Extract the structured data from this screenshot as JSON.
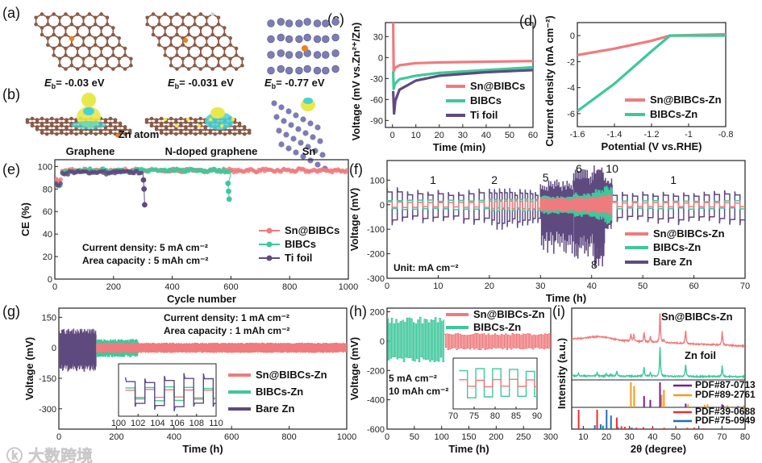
{
  "panel_labels": [
    "(a)",
    "(b)",
    "(c)",
    "(d)",
    "(e)",
    "(f)",
    "(g)",
    "(h)",
    "(i)"
  ],
  "structures": {
    "eb_symbol": "E",
    "eb_sub": "b",
    "a_energies": [
      "= -0.03 eV",
      "= -0.031 eV",
      "= -0.77 eV"
    ],
    "b_labels": [
      "Graphene",
      "N-doped graphene",
      "Sn"
    ],
    "zn_atom_label": "Zn atom"
  },
  "colors": {
    "sn_bibcs": "#ef7b7e",
    "bibcs": "#3ec89b",
    "bare": "#5f4a80",
    "carbon": "#8a5a48",
    "sn_atom": "#7d7cb4",
    "zn_atom": "#e9821e",
    "iso_yellow": "#e8e84a",
    "iso_cyan": "#46d3d6",
    "pdf_zn": "#7a1f8f",
    "pdf_sn": "#f39a1e",
    "pdf_red": "#e8302f",
    "pdf_blue": "#1f6fb8"
  },
  "watermark": "大数跨境",
  "chart_data": [
    {
      "id": "c",
      "type": "line",
      "xlabel": "Time (min)",
      "ylabel": "Voltage (mV vs.Zn²⁺/Zn)",
      "xlim": [
        -3,
        60
      ],
      "ylim": [
        -100,
        50
      ],
      "xticks": [
        0,
        10,
        20,
        30,
        40,
        50,
        60
      ],
      "yticks": [
        30,
        0,
        -30,
        -60,
        -90
      ],
      "legend": "bottom-right",
      "series": [
        {
          "name": "Sn@BIBCs",
          "color_key": "sn_bibcs",
          "points": [
            [
              0.3,
              50
            ],
            [
              0.5,
              -20
            ],
            [
              1,
              -15
            ],
            [
              3,
              -11
            ],
            [
              10,
              -8
            ],
            [
              20,
              -7
            ],
            [
              40,
              -6
            ],
            [
              60,
              -5
            ]
          ]
        },
        {
          "name": "BIBCs",
          "color_key": "bibcs",
          "points": [
            [
              0.3,
              -20
            ],
            [
              0.5,
              -45
            ],
            [
              1,
              -38
            ],
            [
              3,
              -31
            ],
            [
              10,
              -26
            ],
            [
              20,
              -22
            ],
            [
              40,
              -18
            ],
            [
              60,
              -14
            ]
          ]
        },
        {
          "name": "Ti foil",
          "color_key": "bare",
          "points": [
            [
              0.3,
              -48
            ],
            [
              0.7,
              -80
            ],
            [
              1.2,
              -62
            ],
            [
              3,
              -46
            ],
            [
              10,
              -33
            ],
            [
              20,
              -26
            ],
            [
              40,
              -21
            ],
            [
              60,
              -18
            ]
          ]
        }
      ]
    },
    {
      "id": "d",
      "type": "line",
      "xlabel": "Potential (V vs.RHE)",
      "ylabel": "Current density (mA cm⁻²)",
      "xlim": [
        -1.6,
        -0.8
      ],
      "ylim": [
        -7,
        1
      ],
      "xticks": [
        -1.6,
        -1.4,
        -1.2,
        -1.0,
        -0.8
      ],
      "yticks": [
        0,
        -2,
        -4,
        -6
      ],
      "legend": "bottom-right",
      "series": [
        {
          "name": "Sn@BIBCs-Zn",
          "color_key": "sn_bibcs",
          "points": [
            [
              -1.6,
              -1.5
            ],
            [
              -1.4,
              -1.0
            ],
            [
              -1.2,
              -0.4
            ],
            [
              -1.1,
              0
            ],
            [
              -0.8,
              0.1
            ]
          ]
        },
        {
          "name": "BIBCs-Zn",
          "color_key": "bibcs",
          "points": [
            [
              -1.6,
              -5.8
            ],
            [
              -1.4,
              -3.7
            ],
            [
              -1.2,
              -1.2
            ],
            [
              -1.1,
              0
            ],
            [
              -0.8,
              0
            ]
          ]
        }
      ]
    },
    {
      "id": "e",
      "type": "scatter",
      "xlabel": "Cycle number",
      "ylabel": "CE (%)",
      "xlim": [
        0,
        1000
      ],
      "ylim": [
        0,
        106
      ],
      "xticks": [
        0,
        200,
        400,
        600,
        800,
        1000
      ],
      "yticks": [
        0,
        20,
        40,
        60,
        80,
        100
      ],
      "legend": "bottom-right",
      "annotations": [
        "Current density: 5 mA cm⁻²",
        "Area capacity : 5 mAh cm⁻²"
      ],
      "series": [
        {
          "name": "Sn@BIBCs",
          "color_key": "sn_bibcs",
          "x_start": 0,
          "x_step": 25,
          "values": [
            88,
            96,
            97,
            96,
            97,
            96,
            97,
            96,
            96,
            97,
            96,
            97,
            96,
            97,
            96,
            96,
            97,
            96,
            97,
            96,
            96,
            97,
            96,
            97,
            96,
            96,
            97,
            96,
            97,
            96,
            96,
            97,
            96,
            97,
            96,
            96,
            97,
            96,
            97,
            96,
            96
          ]
        },
        {
          "name": "BIBCs",
          "color_key": "bibcs",
          "x_start": 0,
          "x_step": 25,
          "values": [
            82,
            95,
            97,
            96,
            97,
            96,
            97,
            96,
            97,
            96,
            96,
            97,
            96,
            97,
            96,
            96,
            97,
            96,
            97,
            96,
            96,
            97,
            96,
            96,
            93
          ],
          "extra_points": [
            [
              590,
              85
            ],
            [
              592,
              78
            ],
            [
              594,
              71
            ]
          ]
        },
        {
          "name": "Ti foil",
          "color_key": "bare",
          "x_start": 0,
          "x_step": 25,
          "values": [
            84,
            94,
            95,
            95,
            95,
            95,
            95,
            94,
            95,
            95,
            95,
            95,
            94
          ],
          "extra_points": [
            [
              302,
              88
            ],
            [
              304,
              80
            ],
            [
              306,
              66
            ]
          ]
        }
      ]
    },
    {
      "id": "f",
      "type": "line",
      "xlabel": "Time (h)",
      "ylabel": "Voltage (mV)",
      "xlim": [
        0,
        70
      ],
      "ylim": [
        -300,
        180
      ],
      "xticks": [
        0,
        10,
        20,
        30,
        40,
        50,
        60,
        70
      ],
      "yticks": [
        100,
        0,
        -100,
        -200,
        -300
      ],
      "legend": "bottom-right",
      "annotations": [
        "Unit: mA cm⁻²"
      ],
      "rate_labels": [
        {
          "text": "1",
          "t": 9
        },
        {
          "text": "2",
          "t": 21
        },
        {
          "text": "5",
          "t": 31
        },
        {
          "text": "6",
          "t": 37.5
        },
        {
          "text": "8",
          "t": 40.5
        },
        {
          "text": "10",
          "t": 44
        },
        {
          "text": "1",
          "t": 56
        }
      ],
      "series": [
        {
          "name": "Sn@BIBCs-Zn",
          "color_key": "sn_bibcs",
          "segments": [
            [
              0,
              20,
              2,
              10,
              -10
            ],
            [
              20,
              30,
              1,
              14,
              -14
            ],
            [
              30,
              36.5,
              0.4,
              22,
              -22
            ],
            [
              36.5,
              40.5,
              0.33,
              26,
              -26
            ],
            [
              40.5,
              42.5,
              0.25,
              30,
              -30
            ],
            [
              42.5,
              44,
              0.2,
              35,
              -35
            ],
            [
              44,
              70,
              2,
              8,
              -8
            ]
          ]
        },
        {
          "name": "BIBCs-Zn",
          "color_key": "bibcs",
          "segments": [
            [
              0,
              20,
              2,
              16,
              -18
            ],
            [
              20,
              30,
              1,
              20,
              -22
            ],
            [
              30,
              36.5,
              0.4,
              30,
              -32
            ],
            [
              36.5,
              40.5,
              0.33,
              40,
              -42
            ],
            [
              40.5,
              42.5,
              0.25,
              52,
              -55
            ],
            [
              42.5,
              44,
              0.2,
              65,
              -65
            ],
            [
              44,
              70,
              2,
              14,
              -16
            ]
          ]
        },
        {
          "name": "Bare Zn",
          "color_key": "bare",
          "segments": [
            [
              0,
              20,
              2,
              45,
              -55
            ],
            [
              20,
              30,
              1,
              45,
              -65
            ],
            [
              30,
              36.5,
              0.4,
              65,
              -130
            ],
            [
              36.5,
              40.5,
              0.33,
              95,
              -140
            ],
            [
              40.5,
              42.5,
              0.25,
              105,
              -170
            ],
            [
              42.5,
              44,
              0.2,
              70,
              -70
            ],
            [
              44,
              70,
              2,
              40,
              -55
            ]
          ]
        }
      ]
    },
    {
      "id": "g",
      "type": "line",
      "xlabel": "Time (h)",
      "ylabel": "Voltage (mV)",
      "xlim": [
        0,
        1000
      ],
      "ylim": [
        -400,
        195
      ],
      "xticks": [
        0,
        200,
        400,
        600,
        800,
        1000
      ],
      "yticks": [
        150,
        0,
        -150,
        -300
      ],
      "legend": "bottom-right",
      "annotations": [
        "Current density: 1 mA cm⁻²",
        "Area capacity : 1 mAh cm⁻²"
      ],
      "series": [
        {
          "name": "Sn@BIBCs-Zn",
          "color_key": "sn_bibcs",
          "segments": [
            [
              130,
              1000,
              2,
              20,
              -20
            ]
          ]
        },
        {
          "name": "BIBCs-Zn",
          "color_key": "bibcs",
          "segments": [
            [
              130,
              275,
              2,
              35,
              -38
            ]
          ]
        },
        {
          "name": "Bare Zn",
          "color_key": "bare",
          "segments": [
            [
              0,
              130,
              2,
              60,
              -75
            ]
          ]
        }
      ],
      "inset": {
        "xlim": [
          100,
          110
        ],
        "xticks": [
          100,
          102,
          104,
          106,
          108,
          110
        ],
        "series": [
          {
            "color_key": "sn_bibcs",
            "period": 2,
            "hi": 10,
            "lo": -10
          },
          {
            "color_key": "bibcs",
            "period": 2,
            "hi": 16,
            "lo": -16
          },
          {
            "color_key": "bare",
            "period": 2,
            "hi": 35,
            "lo": -30
          }
        ]
      }
    },
    {
      "id": "h",
      "type": "line",
      "xlabel": "Time (h)",
      "ylabel": "Voltage (mV)",
      "xlim": [
        0,
        300
      ],
      "ylim": [
        -600,
        225
      ],
      "xticks": [
        0,
        50,
        100,
        150,
        200,
        250,
        300
      ],
      "yticks": [
        200,
        0,
        -200,
        -400,
        -600
      ],
      "legend": "top-right",
      "annotations": [
        "5 mA cm⁻²",
        "10 mAh cm⁻²"
      ],
      "series": [
        {
          "name": "Sn@BIBCs-Zn",
          "color_key": "sn_bibcs",
          "segments": [
            [
              105,
              300,
              4,
              45,
              -50
            ]
          ]
        },
        {
          "name": "BIBCs-Zn",
          "color_key": "bibcs",
          "segments": [
            [
              0,
              105,
              4,
              140,
              -125
            ]
          ]
        }
      ],
      "inset": {
        "xlim": [
          70,
          90
        ],
        "xticks": [
          70,
          75,
          80,
          85,
          90
        ],
        "series": [
          {
            "color_key": "bibcs",
            "period": 4,
            "hi": 40,
            "lo": -35
          },
          {
            "color_key": "sn_bibcs",
            "period": 4,
            "hi": 10,
            "lo": -8
          }
        ]
      }
    },
    {
      "id": "i",
      "type": "line",
      "xlabel": "2θ (degree)",
      "ylabel": "Intensity (a.u.)",
      "xlim": [
        5,
        80
      ],
      "xticks": [
        10,
        20,
        30,
        40,
        50,
        60,
        70,
        80
      ],
      "trace_labels": [
        "Sn@BIBCs-Zn",
        "Zn foil"
      ],
      "series": [
        {
          "name": "Sn@BIBCs-Zn",
          "color_key": "sn_bibcs",
          "peaks": [
            [
              30.6,
              25
            ],
            [
              31.9,
              22
            ],
            [
              36.3,
              30
            ],
            [
              39,
              18
            ],
            [
              43.2,
              100
            ],
            [
              44.9,
              10
            ],
            [
              54.3,
              45
            ],
            [
              70.1,
              45
            ]
          ]
        },
        {
          "name": "Zn foil",
          "color_key": "bibcs",
          "peaks": [
            [
              8,
              8
            ],
            [
              16,
              12
            ],
            [
              20,
              8
            ],
            [
              22,
              5
            ],
            [
              24.5,
              18
            ],
            [
              36.3,
              30
            ],
            [
              39,
              13
            ],
            [
              43.2,
              100
            ],
            [
              54.3,
              40
            ],
            [
              70.1,
              35
            ]
          ]
        }
      ],
      "references": [
        {
          "name": "PDF#87-0713",
          "color_key": "pdf_zn",
          "sticks": [
            [
              36.3,
              45
            ],
            [
              39,
              30
            ],
            [
              43.2,
              100
            ],
            [
              54.3,
              15
            ],
            [
              70.1,
              12
            ],
            [
              70.6,
              8
            ],
            [
              77,
              5
            ]
          ]
        },
        {
          "name": "PDF#89-2761",
          "color_key": "pdf_sn",
          "sticks": [
            [
              30.6,
              100
            ],
            [
              32,
              85
            ],
            [
              43.9,
              50
            ],
            [
              44.9,
              70
            ],
            [
              55.3,
              12
            ],
            [
              62.5,
              10
            ],
            [
              63.8,
              12
            ],
            [
              72.4,
              8
            ],
            [
              79.5,
              8
            ]
          ]
        },
        {
          "name": "PDF#39-0688",
          "color_key": "pdf_red",
          "sticks": [
            [
              8,
              100
            ],
            [
              16,
              100
            ],
            [
              24.5,
              60
            ],
            [
              26.5,
              15
            ],
            [
              28,
              12
            ],
            [
              30,
              10
            ],
            [
              33,
              8
            ],
            [
              36,
              10
            ],
            [
              40,
              8
            ],
            [
              45,
              7
            ],
            [
              50,
              6
            ],
            [
              55,
              7
            ],
            [
              58,
              8
            ],
            [
              62,
              5
            ]
          ]
        },
        {
          "name": "PDF#75-0949",
          "color_key": "pdf_blue",
          "sticks": [
            [
              15,
              20
            ],
            [
              17.5,
              25
            ],
            [
              20.1,
              100
            ],
            [
              22,
              70
            ],
            [
              18.5,
              18
            ],
            [
              25,
              10
            ],
            [
              31,
              8
            ]
          ]
        }
      ]
    }
  ]
}
